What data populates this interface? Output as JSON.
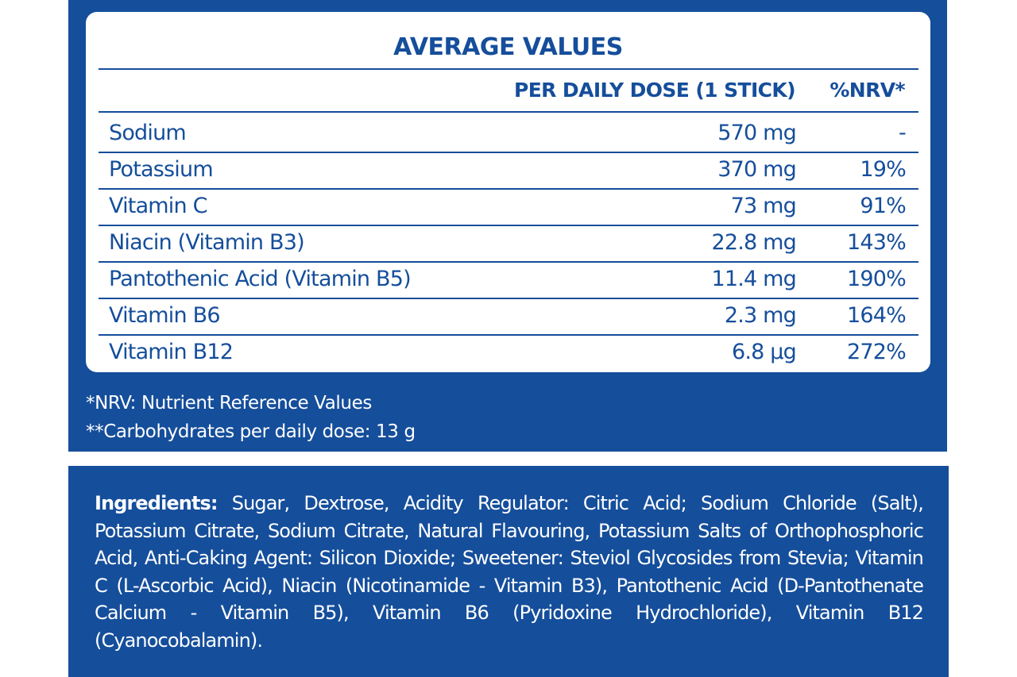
{
  "table": {
    "title": "AVERAGE VALUES",
    "headers": {
      "dose": "PER DAILY DOSE (1 STICK)",
      "nrv": "%NRV*"
    },
    "rows": [
      {
        "name": "Sodium",
        "amount": "570 mg",
        "nrv": "-"
      },
      {
        "name": "Potassium",
        "amount": "370 mg",
        "nrv": "19%"
      },
      {
        "name": "Vitamin C",
        "amount": "73 mg",
        "nrv": "91%"
      },
      {
        "name": "Niacin (Vitamin B3)",
        "amount": "22.8 mg",
        "nrv": "143%"
      },
      {
        "name": "Pantothenic Acid (Vitamin B5)",
        "amount": "11.4 mg",
        "nrv": "190%"
      },
      {
        "name": "Vitamin B6",
        "amount": "2.3 mg",
        "nrv": "164%"
      },
      {
        "name": "Vitamin B12",
        "amount": "6.8 µg",
        "nrv": "272%"
      }
    ]
  },
  "footnotes": {
    "nrv": "*NRV: Nutrient Reference Values",
    "carbs": "**Carbohydrates per daily dose: 13 g"
  },
  "ingredients": {
    "label": "Ingredients:",
    "text": " Sugar, Dextrose, Acidity Regulator: Citric Acid; Sodium Chloride (Salt), Potassium Citrate, Sodium Citrate, Natural Flavouring, Potassium Salts of Orthophosphoric Acid, Anti-Caking Agent: Silicon Dioxide; Sweetener: Steviol Glycosides from Stevia; Vitamin C (L-Ascorbic Acid), Niacin (Nicotinamide - Vitamin B3), Pantothenic Acid (D-Pantothenate Calcium - Vitamin B5), Vitamin B6 (Pyridoxine Hydrochloride), Vitamin B12 (Cyanocobalamin)."
  },
  "colors": {
    "brand_blue": "#154e9b",
    "card_bg": "#ffffff",
    "text_on_blue": "#ffffff"
  }
}
